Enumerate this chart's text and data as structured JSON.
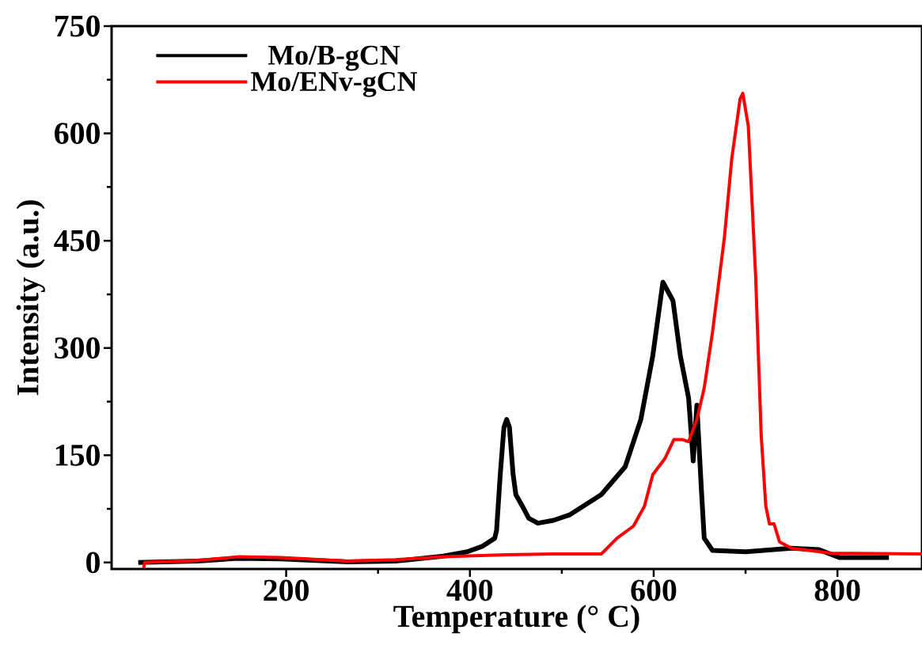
{
  "chart_data": {
    "type": "line",
    "xlabel": "Temperature (° C)",
    "ylabel": "Intensity (a.u.)",
    "xlim": [
      10,
      892
    ],
    "ylim": [
      -9,
      750
    ],
    "xticks": [
      200,
      400,
      600,
      800
    ],
    "yticks": [
      0,
      150,
      300,
      450,
      600,
      750
    ],
    "legend": "top left",
    "grid": false,
    "line_style": "solid",
    "marker": "none",
    "series": [
      {
        "name": "Mo/B-gCN",
        "color": "#000000",
        "x": [
          39,
          103,
          147,
          194,
          267,
          319,
          371,
          397,
          414,
          427,
          429,
          433,
          437,
          440,
          443,
          447,
          450,
          457,
          464,
          474,
          491,
          509,
          543,
          569,
          586,
          599,
          610,
          621,
          629,
          638,
          643,
          647,
          652,
          655,
          664,
          700,
          750,
          780,
          802,
          856
        ],
        "values": [
          0,
          2,
          6,
          5,
          1,
          2,
          9,
          15,
          23,
          34,
          45,
          123,
          189,
          200,
          189,
          123,
          95,
          79,
          62,
          55,
          59,
          67,
          95,
          134,
          200,
          289,
          392,
          366,
          289,
          230,
          142,
          220,
          100,
          34,
          17,
          15,
          20,
          18,
          7,
          7
        ]
      },
      {
        "name": "Mo/ENv-gCN",
        "color": "#ff0000",
        "x": [
          45,
          46,
          103,
          147,
          194,
          267,
          319,
          371,
          440,
          491,
          543,
          560,
          578,
          590,
          599,
          612,
          622,
          631,
          638,
          647,
          655,
          664,
          677,
          685,
          694,
          697,
          703,
          711,
          717,
          722,
          726,
          731,
          737,
          750,
          793,
          892
        ],
        "values": [
          -8,
          0,
          3,
          8,
          7,
          2,
          4,
          8,
          11,
          12,
          12,
          34,
          51,
          79,
          123,
          145,
          172,
          172,
          169,
          200,
          244,
          322,
          455,
          565,
          648,
          656,
          610,
          399,
          178,
          79,
          54,
          54,
          29,
          20,
          13,
          12
        ]
      }
    ]
  }
}
